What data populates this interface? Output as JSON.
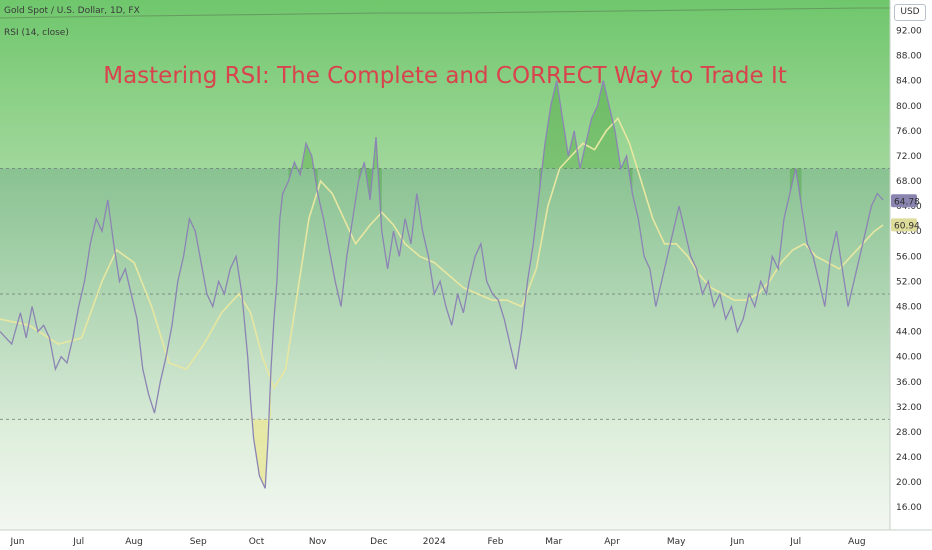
{
  "header": {
    "symbol": "Gold Spot / U.S. Dollar, 1D, FX",
    "indicator": "RSI (14, close)",
    "currency": "USD"
  },
  "headline": "Mastering RSI: The Complete and CORRECT Way to Trade It",
  "colors": {
    "rsi_line": "#8c84b4",
    "ma_line": "#e7e7a1",
    "overbought_zone": "#3a9c2a",
    "extreme_fill": "#e8e58f",
    "headline": "#d8434d"
  },
  "chart_data": {
    "type": "line",
    "ylim": [
      13,
      94
    ],
    "yticks": [
      16,
      20,
      24,
      28,
      32,
      36,
      40,
      44,
      48,
      52,
      56,
      60,
      64,
      68,
      72,
      76,
      80,
      84,
      88,
      92
    ],
    "y_tick_labels": [
      "16.00",
      "20.00",
      "24.00",
      "28.00",
      "32.00",
      "36.00",
      "40.00",
      "44.00",
      "48.00",
      "52.00",
      "56.00",
      "60.00",
      "64.00",
      "68.00",
      "72.00",
      "76.00",
      "80.00",
      "84.00",
      "88.00",
      "92.00"
    ],
    "hlines": [
      70,
      50,
      30
    ],
    "x_range": [
      0,
      304
    ],
    "x_labels": [
      {
        "label": "Jun",
        "x": 6
      },
      {
        "label": "Jul",
        "x": 27
      },
      {
        "label": "Aug",
        "x": 46
      },
      {
        "label": "Sep",
        "x": 68
      },
      {
        "label": "Oct",
        "x": 88
      },
      {
        "label": "Nov",
        "x": 109
      },
      {
        "label": "Dec",
        "x": 130
      },
      {
        "label": "2024",
        "x": 149
      },
      {
        "label": "Feb",
        "x": 170
      },
      {
        "label": "Mar",
        "x": 190
      },
      {
        "label": "Apr",
        "x": 210
      },
      {
        "label": "May",
        "x": 232
      },
      {
        "label": "Jun",
        "x": 253
      },
      {
        "label": "Jul",
        "x": 273
      },
      {
        "label": "Aug",
        "x": 294
      }
    ],
    "series": [
      {
        "name": "RSI",
        "points": [
          [
            0,
            44
          ],
          [
            4,
            42
          ],
          [
            7,
            47
          ],
          [
            9,
            43
          ],
          [
            11,
            48
          ],
          [
            13,
            44
          ],
          [
            15,
            45
          ],
          [
            17,
            43
          ],
          [
            19,
            38
          ],
          [
            21,
            40
          ],
          [
            23,
            39
          ],
          [
            25,
            43
          ],
          [
            27,
            48
          ],
          [
            29,
            52
          ],
          [
            31,
            58
          ],
          [
            33,
            62
          ],
          [
            35,
            60
          ],
          [
            37,
            65
          ],
          [
            39,
            58
          ],
          [
            41,
            52
          ],
          [
            43,
            54
          ],
          [
            45,
            50
          ],
          [
            47,
            46
          ],
          [
            49,
            38
          ],
          [
            51,
            34
          ],
          [
            53,
            31
          ],
          [
            55,
            36
          ],
          [
            57,
            40
          ],
          [
            59,
            45
          ],
          [
            61,
            52
          ],
          [
            63,
            56
          ],
          [
            65,
            62
          ],
          [
            67,
            60
          ],
          [
            69,
            55
          ],
          [
            71,
            50
          ],
          [
            73,
            48
          ],
          [
            75,
            52
          ],
          [
            77,
            50
          ],
          [
            79,
            54
          ],
          [
            81,
            56
          ],
          [
            83,
            50
          ],
          [
            85,
            40
          ],
          [
            86,
            33
          ],
          [
            87,
            27
          ],
          [
            88,
            24
          ],
          [
            89,
            21
          ],
          [
            90,
            20
          ],
          [
            91,
            19
          ],
          [
            92,
            27
          ],
          [
            93,
            38
          ],
          [
            94,
            46
          ],
          [
            95,
            52
          ],
          [
            96,
            62
          ],
          [
            97,
            66
          ],
          [
            99,
            68
          ],
          [
            101,
            71
          ],
          [
            103,
            69
          ],
          [
            105,
            74
          ],
          [
            107,
            72
          ],
          [
            109,
            66
          ],
          [
            111,
            62
          ],
          [
            113,
            57
          ],
          [
            115,
            52
          ],
          [
            117,
            48
          ],
          [
            119,
            56
          ],
          [
            121,
            62
          ],
          [
            123,
            68
          ],
          [
            125,
            71
          ],
          [
            127,
            65
          ],
          [
            129,
            75
          ],
          [
            131,
            60
          ],
          [
            133,
            54
          ],
          [
            135,
            60
          ],
          [
            137,
            56
          ],
          [
            139,
            62
          ],
          [
            141,
            58
          ],
          [
            143,
            66
          ],
          [
            145,
            60
          ],
          [
            147,
            56
          ],
          [
            149,
            50
          ],
          [
            151,
            52
          ],
          [
            153,
            48
          ],
          [
            155,
            45
          ],
          [
            157,
            50
          ],
          [
            159,
            47
          ],
          [
            161,
            52
          ],
          [
            163,
            56
          ],
          [
            165,
            58
          ],
          [
            167,
            52
          ],
          [
            169,
            50
          ],
          [
            171,
            49
          ],
          [
            173,
            46
          ],
          [
            175,
            42
          ],
          [
            177,
            38
          ],
          [
            179,
            44
          ],
          [
            181,
            52
          ],
          [
            183,
            58
          ],
          [
            185,
            66
          ],
          [
            187,
            74
          ],
          [
            189,
            80
          ],
          [
            191,
            84
          ],
          [
            193,
            78
          ],
          [
            195,
            72
          ],
          [
            197,
            76
          ],
          [
            199,
            70
          ],
          [
            201,
            74
          ],
          [
            203,
            78
          ],
          [
            205,
            80
          ],
          [
            207,
            84
          ],
          [
            209,
            80
          ],
          [
            211,
            76
          ],
          [
            213,
            70
          ],
          [
            215,
            72
          ],
          [
            217,
            66
          ],
          [
            219,
            62
          ],
          [
            221,
            56
          ],
          [
            223,
            54
          ],
          [
            225,
            48
          ],
          [
            227,
            52
          ],
          [
            229,
            56
          ],
          [
            231,
            60
          ],
          [
            233,
            64
          ],
          [
            235,
            60
          ],
          [
            237,
            56
          ],
          [
            239,
            54
          ],
          [
            241,
            50
          ],
          [
            243,
            52
          ],
          [
            245,
            48
          ],
          [
            247,
            50
          ],
          [
            249,
            46
          ],
          [
            251,
            48
          ],
          [
            253,
            44
          ],
          [
            255,
            46
          ],
          [
            257,
            50
          ],
          [
            259,
            48
          ],
          [
            261,
            52
          ],
          [
            263,
            50
          ],
          [
            265,
            56
          ],
          [
            267,
            54
          ],
          [
            269,
            62
          ],
          [
            271,
            66
          ],
          [
            273,
            70
          ],
          [
            275,
            64
          ],
          [
            277,
            58
          ],
          [
            279,
            56
          ],
          [
            281,
            52
          ],
          [
            283,
            48
          ],
          [
            285,
            56
          ],
          [
            287,
            60
          ],
          [
            289,
            54
          ],
          [
            291,
            48
          ],
          [
            293,
            52
          ],
          [
            295,
            56
          ],
          [
            297,
            60
          ],
          [
            299,
            64
          ],
          [
            301,
            66
          ],
          [
            303,
            65
          ]
        ]
      },
      {
        "name": "RSI-based MA",
        "points": [
          [
            0,
            46
          ],
          [
            10,
            45
          ],
          [
            20,
            42
          ],
          [
            28,
            43
          ],
          [
            35,
            52
          ],
          [
            40,
            57
          ],
          [
            46,
            55
          ],
          [
            52,
            48
          ],
          [
            58,
            39
          ],
          [
            64,
            38
          ],
          [
            70,
            42
          ],
          [
            76,
            47
          ],
          [
            82,
            50
          ],
          [
            86,
            47
          ],
          [
            90,
            40
          ],
          [
            94,
            35
          ],
          [
            98,
            38
          ],
          [
            102,
            50
          ],
          [
            106,
            62
          ],
          [
            110,
            68
          ],
          [
            114,
            66
          ],
          [
            118,
            62
          ],
          [
            122,
            58
          ],
          [
            127,
            61
          ],
          [
            131,
            63
          ],
          [
            135,
            61
          ],
          [
            139,
            58
          ],
          [
            144,
            56
          ],
          [
            149,
            55
          ],
          [
            154,
            53
          ],
          [
            159,
            51
          ],
          [
            164,
            50
          ],
          [
            169,
            49
          ],
          [
            174,
            49
          ],
          [
            179,
            48
          ],
          [
            184,
            54
          ],
          [
            188,
            64
          ],
          [
            192,
            70
          ],
          [
            196,
            72
          ],
          [
            200,
            74
          ],
          [
            204,
            73
          ],
          [
            208,
            76
          ],
          [
            212,
            78
          ],
          [
            216,
            74
          ],
          [
            220,
            68
          ],
          [
            224,
            62
          ],
          [
            228,
            58
          ],
          [
            232,
            58
          ],
          [
            236,
            56
          ],
          [
            240,
            53
          ],
          [
            244,
            51
          ],
          [
            248,
            50
          ],
          [
            252,
            49
          ],
          [
            256,
            49
          ],
          [
            260,
            50
          ],
          [
            264,
            52
          ],
          [
            268,
            55
          ],
          [
            272,
            57
          ],
          [
            276,
            58
          ],
          [
            280,
            56
          ],
          [
            284,
            55
          ],
          [
            288,
            54
          ],
          [
            292,
            56
          ],
          [
            296,
            58
          ],
          [
            300,
            60
          ],
          [
            303,
            61
          ]
        ]
      }
    ],
    "last_values": {
      "rsi": "64.78",
      "ma": "60.94"
    }
  }
}
